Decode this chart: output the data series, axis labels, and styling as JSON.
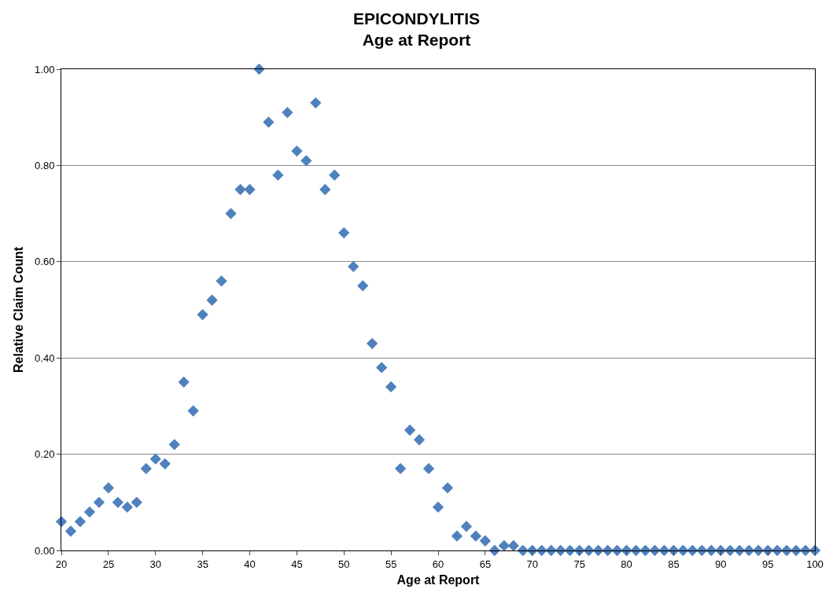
{
  "chart_data": {
    "type": "scatter",
    "title": "EPICONDYLITIS\nAge at Report",
    "xlabel": "Age at Report",
    "ylabel": "Relative Claim Count",
    "x": [
      20,
      21,
      22,
      23,
      24,
      25,
      26,
      27,
      28,
      29,
      30,
      31,
      32,
      33,
      34,
      35,
      36,
      37,
      38,
      39,
      40,
      41,
      42,
      43,
      44,
      45,
      46,
      47,
      48,
      49,
      50,
      51,
      52,
      53,
      54,
      55,
      56,
      57,
      58,
      59,
      60,
      61,
      62,
      63,
      64,
      65,
      66,
      67,
      68,
      69,
      70,
      71,
      72,
      73,
      74,
      75,
      76,
      77,
      78,
      79,
      80,
      81,
      82,
      83,
      84,
      85,
      86,
      87,
      88,
      89,
      90,
      91,
      92,
      93,
      94,
      95,
      96,
      97,
      98,
      99,
      100
    ],
    "series": [
      {
        "color": "#4f81bd",
        "values": [
          0.06,
          0.04,
          0.06,
          0.08,
          0.1,
          0.13,
          0.1,
          0.09,
          0.1,
          0.17,
          0.19,
          0.18,
          0.22,
          0.35,
          0.29,
          0.49,
          0.52,
          0.56,
          0.7,
          0.75,
          0.75,
          1.0,
          0.89,
          0.78,
          0.91,
          0.83,
          0.81,
          0.93,
          0.75,
          0.78,
          0.66,
          0.59,
          0.55,
          0.43,
          0.38,
          0.34,
          0.17,
          0.25,
          0.23,
          0.17,
          0.09,
          0.13,
          0.03,
          0.05,
          0.03,
          0.02,
          0.0,
          0.01,
          0.01,
          0,
          0,
          0,
          0,
          0,
          0,
          0,
          0,
          0,
          0,
          0,
          0,
          0,
          0,
          0,
          0,
          0,
          0,
          0,
          0,
          0,
          0,
          0,
          0,
          0,
          0,
          0,
          0,
          0,
          0,
          0,
          0
        ]
      }
    ],
    "xlim": [
      20,
      100
    ],
    "xticks": [
      20,
      25,
      30,
      35,
      40,
      45,
      50,
      55,
      60,
      65,
      70,
      75,
      80,
      85,
      90,
      95,
      100
    ],
    "ylim": [
      0,
      1
    ],
    "yticks": [
      {
        "value": 0,
        "label": "0.00"
      },
      {
        "value": 0.2,
        "label": "0.20"
      },
      {
        "value": 0.4,
        "label": "0.40"
      },
      {
        "value": 0.6,
        "label": "0.60"
      },
      {
        "value": 0.8,
        "label": "0.80"
      },
      {
        "value": 1,
        "label": "1.00"
      }
    ],
    "grid": "y",
    "legend": false,
    "marker": "diamond"
  }
}
